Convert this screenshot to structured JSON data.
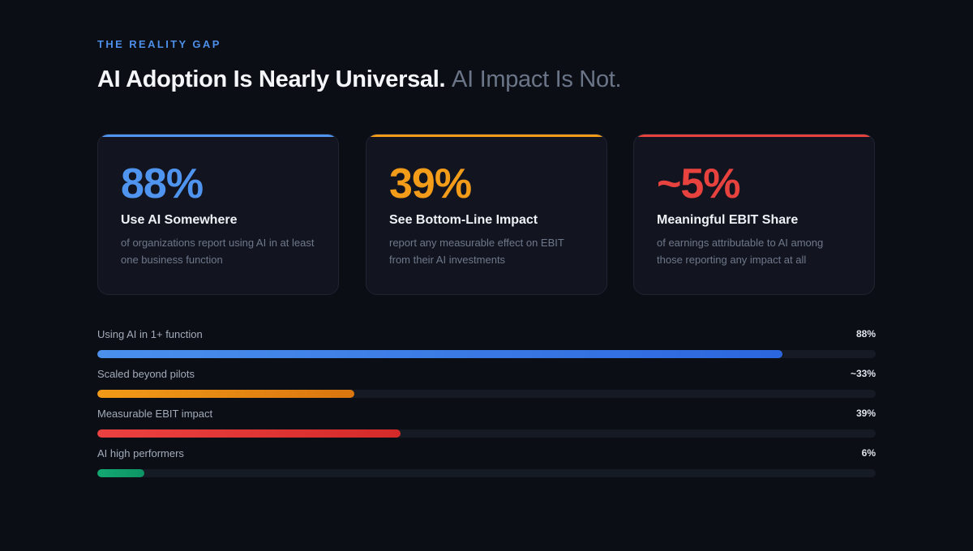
{
  "eyebrow": "THE REALITY GAP",
  "headline": {
    "strong": "AI Adoption Is Nearly Universal.",
    "muted": "AI Impact Is Not."
  },
  "colors": {
    "blue": "#4d8fe8",
    "amber": "#f39c1a",
    "red": "#e53e3e",
    "green": "#10a56c",
    "background": "#0b0e15",
    "card": "#121520"
  },
  "cards": [
    {
      "value": "88%",
      "title": "Use AI Somewhere",
      "description": "of organizations report using AI in at least one business function",
      "color": "#4f95f0"
    },
    {
      "value": "39%",
      "title": "See Bottom-Line Impact",
      "description": "report any measurable effect on EBIT from their AI investments",
      "color": "#f39c1a"
    },
    {
      "value": "~5%",
      "title": "Meaningful EBIT Share",
      "description": "of earnings attributable to AI among those reporting any impact at all",
      "color": "#e8423f"
    }
  ],
  "bars": [
    {
      "label": "Using AI in 1+ function",
      "value_text": "88%",
      "fraction": 0.88,
      "color_start": "#4a90ec",
      "color_end": "#2c66de"
    },
    {
      "label": "Scaled beyond pilots",
      "value_text": "~33%",
      "fraction": 0.33,
      "color_start": "#f29a17",
      "color_end": "#d9760f"
    },
    {
      "label": "Measurable EBIT impact",
      "value_text": "39%",
      "fraction": 0.39,
      "color_start": "#ec4141",
      "color_end": "#d52a2a"
    },
    {
      "label": "AI high performers",
      "value_text": "6%",
      "fraction": 0.06,
      "color_start": "#12a872",
      "color_end": "#0e9466"
    }
  ]
}
